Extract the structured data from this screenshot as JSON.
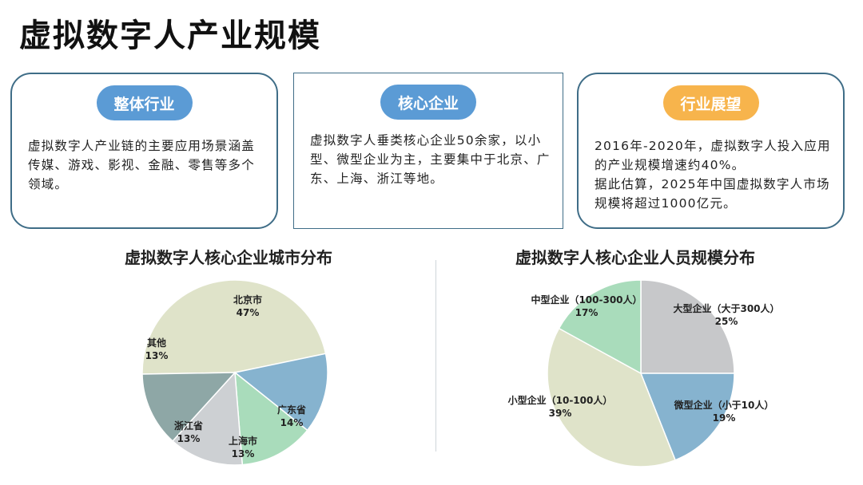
{
  "title": "虚拟数字人产业规模",
  "cards": [
    {
      "tag": "整体行业",
      "lines": [
        "虚拟数字人产业链的主要应用场景涵盖传媒、游戏、影视、金融、零售等多个领域。"
      ]
    },
    {
      "tag": "核心企业",
      "lines": [
        "虚拟数字人垂类核心企业50余家，以小型、微型企业为主，主要集中于北京、广东、上海、浙江等地。"
      ]
    },
    {
      "tag": "行业展望",
      "lines": [
        "2016年-2020年，虚拟数字人投入应用的产业规模增速约40%。",
        "据此估算，2025年中国虚拟数字人市场规模将超过1000亿元。"
      ]
    }
  ],
  "colors": {
    "blue_tag": "#5b9bd5",
    "orange_tag": "#f7b44c",
    "card_border": "#3f6d87"
  },
  "chart_data": [
    {
      "type": "pie",
      "title": "虚拟数字人核心企业城市分布",
      "slices": [
        {
          "label": "北京市",
          "value": 47,
          "pct": "47%",
          "color": "#dfe3c9"
        },
        {
          "label": "广东省",
          "value": 14,
          "pct": "14%",
          "color": "#86b3cf"
        },
        {
          "label": "上海市",
          "value": 13,
          "pct": "13%",
          "color": "#a9dcbb"
        },
        {
          "label": "浙江省",
          "value": 13,
          "pct": "13%",
          "color": "#cdd0d3"
        },
        {
          "label": "其他",
          "value": 13,
          "pct": "13%",
          "color": "#8ea7a6"
        }
      ]
    },
    {
      "type": "pie",
      "title": "虚拟数字人核心企业人员规模分布",
      "slices": [
        {
          "label": "大型企业（大于300人）",
          "value": 25,
          "pct": "25%",
          "color": "#c7c8ca"
        },
        {
          "label": "微型企业（小于10人）",
          "value": 19,
          "pct": "19%",
          "color": "#86b3cf"
        },
        {
          "label": "小型企业（10-100人）",
          "value": 39,
          "pct": "39%",
          "color": "#dfe3c9"
        },
        {
          "label": "中型企业（100-300人）",
          "value": 17,
          "pct": "17%",
          "color": "#a9dcbb"
        }
      ]
    }
  ]
}
